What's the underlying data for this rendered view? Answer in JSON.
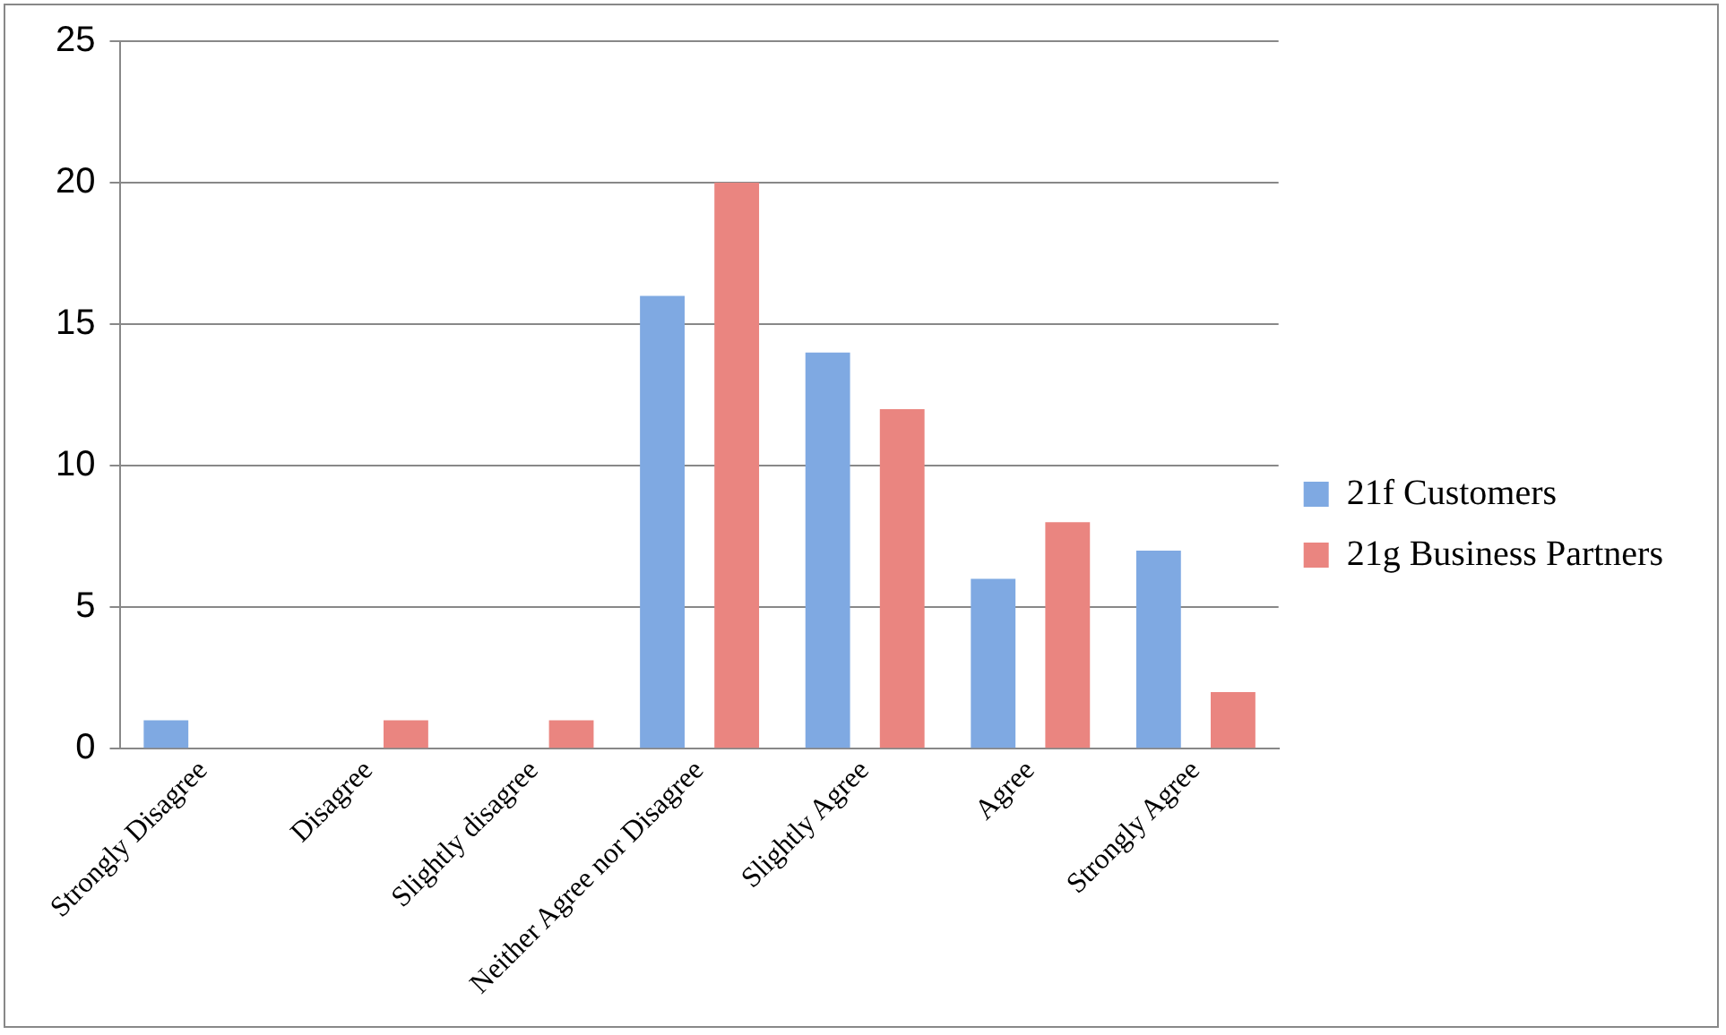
{
  "chart_data": {
    "type": "bar",
    "categories": [
      "Strongly Disagree",
      "Disagree",
      "Slightly disagree",
      "Neither Agree nor Disagree",
      "Slightly Agree",
      "Agree",
      "Strongly Agree"
    ],
    "series": [
      {
        "name": "21f Customers",
        "color": "#7fa9e2",
        "values": [
          1,
          0,
          0,
          16,
          14,
          6,
          7
        ]
      },
      {
        "name": "21g Business Partners",
        "color": "#ea8580",
        "values": [
          0,
          1,
          1,
          20,
          12,
          8,
          2
        ]
      }
    ],
    "ylim": [
      0,
      25
    ],
    "yticks": [
      0,
      5,
      10,
      15,
      20,
      25
    ],
    "grid": "y",
    "legend": "right"
  }
}
